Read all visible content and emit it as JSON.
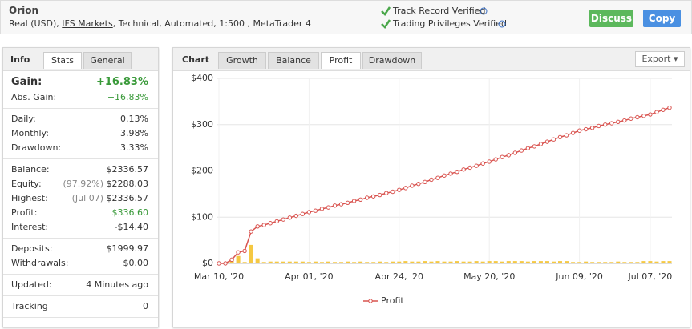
{
  "header": {
    "name": "Orion",
    "details_prefix": "Real (USD),",
    "broker": "IFS Markets",
    "details_suffix": ", Technical, Automated, 1:500 , MetaTrader 4",
    "verified": [
      "Track Record Verified",
      "Trading Privileges Verified"
    ],
    "buttons": [
      "Discuss",
      "Copy"
    ]
  },
  "info": {
    "tabs": [
      "Info",
      "Stats",
      "General"
    ],
    "gain": {
      "label": "Gain:",
      "value": "+16.83%"
    },
    "groups": [
      [
        {
          "label": "Abs. Gain:",
          "value": "+16.83%"
        }
      ],
      [
        {
          "label": "Daily:",
          "value": "0.13%"
        },
        {
          "label": "Monthly:",
          "value": "3.98%"
        },
        {
          "label": "Drawdown:",
          "value": "3.33%"
        }
      ],
      [
        {
          "label": "Balance:",
          "value": "$2336.57"
        },
        {
          "label": "Equity:",
          "note": "(97.92%)",
          "value": "$2288.03"
        },
        {
          "label": "Highest:",
          "note": "(Jul 07)",
          "value": "$2336.57"
        },
        {
          "label": "Profit:",
          "value": "$336.60"
        },
        {
          "label": "Interest:",
          "value": "-$14.40"
        }
      ],
      [
        {
          "label": "Deposits:",
          "value": "$1999.97"
        },
        {
          "label": "Withdrawals:",
          "value": "$0.00"
        }
      ],
      [
        {
          "label": "Updated:",
          "value": "4 Minutes ago"
        }
      ],
      [
        {
          "label": "Tracking",
          "value": "0"
        }
      ]
    ]
  },
  "chart_panel": {
    "tabs": [
      "Chart",
      "Growth",
      "Balance",
      "Profit",
      "Drawdown"
    ],
    "export": "Export"
  },
  "chart_data": {
    "type": "line",
    "categories": [
      "Mar 10, '20",
      null,
      null,
      null,
      null,
      null,
      null,
      null,
      null,
      null,
      null,
      null,
      null,
      null,
      "Apr 01, '20",
      null,
      null,
      null,
      null,
      null,
      null,
      null,
      null,
      null,
      null,
      null,
      null,
      null,
      "Apr 24, '20",
      null,
      null,
      null,
      null,
      null,
      null,
      null,
      null,
      null,
      null,
      null,
      null,
      null,
      "May 20, '20",
      null,
      null,
      null,
      null,
      null,
      null,
      null,
      null,
      null,
      null,
      null,
      null,
      null,
      "Jun 09, '20",
      null,
      null,
      null,
      null,
      null,
      null,
      null,
      null,
      null,
      null,
      "Jul 07, '20",
      null,
      null,
      null
    ],
    "series": [
      {
        "name": "Profit",
        "color": "#d9534f",
        "values": [
          0,
          0,
          8,
          24,
          27,
          69,
          80,
          83,
          87,
          91,
          95,
          99,
          103,
          107,
          111,
          114,
          118,
          121,
          125,
          128,
          131,
          135,
          138,
          142,
          145,
          148,
          152,
          155,
          159,
          163,
          168,
          172,
          176,
          181,
          185,
          190,
          194,
          198,
          203,
          207,
          211,
          216,
          220,
          225,
          230,
          234,
          239,
          244,
          249,
          253,
          258,
          263,
          268,
          273,
          277,
          282,
          287,
          290,
          293,
          297,
          300,
          303,
          306,
          309,
          313,
          316,
          319,
          322,
          327,
          332,
          336.6
        ]
      }
    ],
    "bar_color": "#f5c842",
    "bar_values": [
      0,
      0,
      8,
      16,
      3,
      40,
      11,
      3,
      4,
      4,
      4,
      4,
      4,
      4,
      3,
      4,
      3,
      4,
      3,
      3,
      4,
      3,
      4,
      3,
      3,
      4,
      3,
      4,
      4,
      5,
      4,
      4,
      5,
      4,
      5,
      4,
      4,
      5,
      4,
      4,
      5,
      4,
      5,
      5,
      4,
      5,
      5,
      5,
      4,
      5,
      5,
      5,
      4,
      5,
      5,
      3,
      3,
      4,
      3,
      3,
      3,
      3,
      4,
      3,
      3,
      3,
      5,
      5,
      4,
      5,
      5
    ],
    "ylim": [
      0,
      400
    ],
    "yticks": [
      {
        "value": 0,
        "label": "$0"
      },
      {
        "value": 100,
        "label": "$100"
      },
      {
        "value": 200,
        "label": "$200"
      },
      {
        "value": 300,
        "label": "$300"
      },
      {
        "value": 400,
        "label": "$400"
      }
    ],
    "grid": true
  }
}
